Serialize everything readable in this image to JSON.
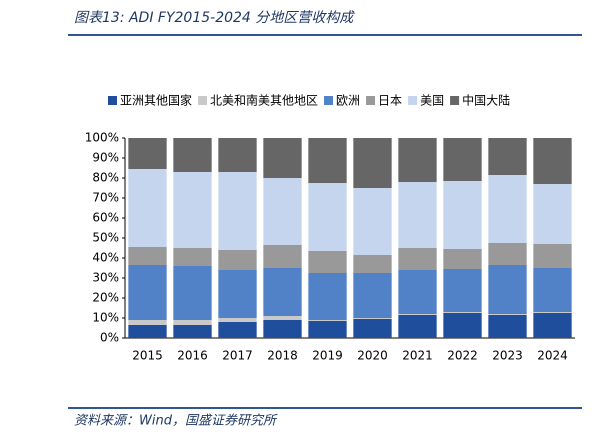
{
  "chart_data": {
    "type": "stacked_bar_percent",
    "title": "图表13:  ADI FY2015-2024 分地区营收构成",
    "source": "资料来源：Wind，国盛证券研究所",
    "categories": [
      "2015",
      "2016",
      "2017",
      "2018",
      "2019",
      "2020",
      "2021",
      "2022",
      "2023",
      "2024"
    ],
    "series": [
      {
        "name": "亚洲其他国家",
        "color": "#1f4e9c",
        "values": [
          6.5,
          6.5,
          8,
          9,
          8.5,
          9.5,
          11.5,
          12.5,
          11.5,
          12.5
        ]
      },
      {
        "name": "北美和南美其他地区",
        "color": "#c9c9c9",
        "values": [
          2.5,
          2.5,
          2,
          2,
          0.5,
          0.5,
          0.5,
          0.5,
          0.5,
          0.5
        ]
      },
      {
        "name": "欧洲",
        "color": "#5181c6",
        "values": [
          27.5,
          27,
          24,
          24,
          23.5,
          22.5,
          22,
          21.5,
          24.5,
          22
        ]
      },
      {
        "name": "日本",
        "color": "#999999",
        "values": [
          9,
          9,
          10,
          11.5,
          11,
          9,
          11,
          10,
          11,
          12
        ]
      },
      {
        "name": "美国",
        "color": "#c5d5ee",
        "values": [
          39,
          38,
          39,
          33.5,
          34,
          33.5,
          33,
          34,
          34,
          30
        ]
      },
      {
        "name": "中国大陆",
        "color": "#666666",
        "values": [
          15.5,
          17,
          17,
          20,
          22.5,
          25,
          22,
          21.5,
          18.5,
          23
        ]
      }
    ],
    "ylim": [
      0,
      100
    ],
    "yticks": [
      {
        "value": 0,
        "label": "0%"
      },
      {
        "value": 10,
        "label": "10%"
      },
      {
        "value": 20,
        "label": "20%"
      },
      {
        "value": 30,
        "label": "30%"
      },
      {
        "value": 40,
        "label": "40%"
      },
      {
        "value": 50,
        "label": "50%"
      },
      {
        "value": 60,
        "label": "60%"
      },
      {
        "value": 70,
        "label": "70%"
      },
      {
        "value": 80,
        "label": "80%"
      },
      {
        "value": 90,
        "label": "90%"
      },
      {
        "value": 100,
        "label": "100%"
      }
    ],
    "legend": "top"
  }
}
